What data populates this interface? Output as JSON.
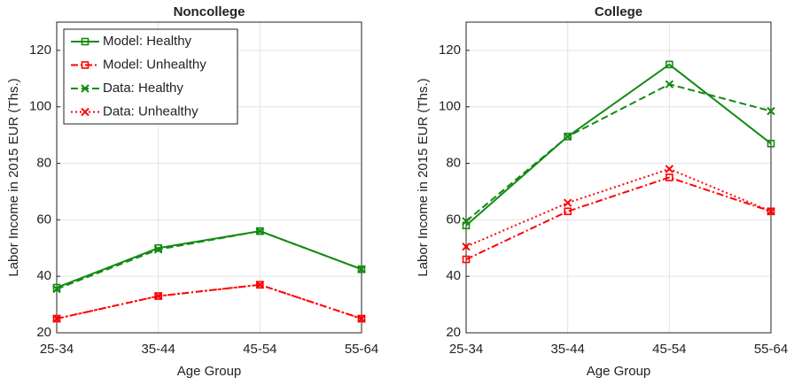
{
  "chart_data": [
    {
      "type": "line",
      "title": "Noncollege",
      "xlabel": "Age Group",
      "ylabel": "Labor Income in 2015 EUR (Ths.)",
      "categories": [
        "25-34",
        "35-44",
        "45-54",
        "55-64"
      ],
      "ylim": [
        20,
        130
      ],
      "yticks": [
        20,
        40,
        60,
        80,
        100,
        120
      ],
      "grid": true,
      "legend": true,
      "legend_position": "upper left",
      "series": [
        {
          "name": "Model: Healthy",
          "color": "#138a13",
          "linestyle": "solid",
          "marker": "square",
          "values": [
            36,
            50,
            56,
            42.5
          ]
        },
        {
          "name": "Model: Unhealthy",
          "color": "#ff0000",
          "linestyle": "dashdot",
          "marker": "square",
          "values": [
            25,
            33,
            37,
            25
          ]
        },
        {
          "name": "Data: Healthy",
          "color": "#138a13",
          "linestyle": "dashed",
          "marker": "x",
          "values": [
            35.5,
            49.5,
            56,
            42.5
          ]
        },
        {
          "name": "Data: Unhealthy",
          "color": "#ff0000",
          "linestyle": "dotted",
          "marker": "x",
          "values": [
            25,
            33,
            37,
            25
          ]
        }
      ]
    },
    {
      "type": "line",
      "title": "College",
      "xlabel": "Age Group",
      "ylabel": "Labor Income in 2015 EUR (Ths.)",
      "categories": [
        "25-34",
        "35-44",
        "45-54",
        "55-64"
      ],
      "ylim": [
        20,
        130
      ],
      "yticks": [
        20,
        40,
        60,
        80,
        100,
        120
      ],
      "grid": true,
      "legend": false,
      "series": [
        {
          "color": "#138a13",
          "linestyle": "solid",
          "marker": "square",
          "values": [
            58,
            89.5,
            115,
            87
          ]
        },
        {
          "color": "#ff0000",
          "linestyle": "dashdot",
          "marker": "square",
          "values": [
            46,
            63,
            75,
            63
          ]
        },
        {
          "color": "#138a13",
          "linestyle": "dashed",
          "marker": "x",
          "values": [
            59.5,
            89.5,
            108,
            98.5
          ]
        },
        {
          "color": "#ff0000",
          "linestyle": "dotted",
          "marker": "x",
          "values": [
            50.5,
            66,
            78,
            63
          ]
        }
      ]
    }
  ]
}
